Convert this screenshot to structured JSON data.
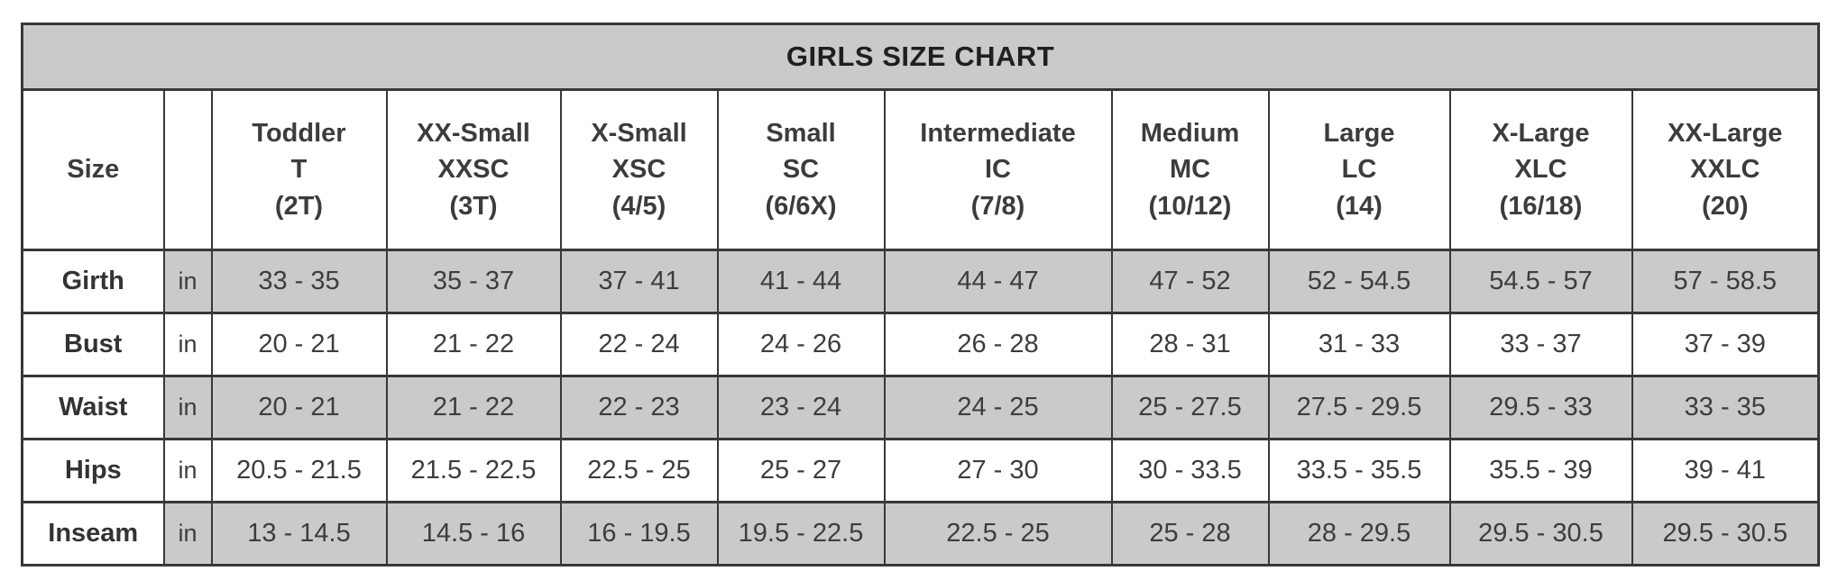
{
  "chart_data": {
    "type": "table",
    "title": "GIRLS SIZE CHART",
    "corner_label": "Size",
    "unit": "in",
    "columns": [
      {
        "name": "Toddler",
        "code": "T",
        "sizes": "(2T)"
      },
      {
        "name": "XX-Small",
        "code": "XXSC",
        "sizes": "(3T)"
      },
      {
        "name": "X-Small",
        "code": "XSC",
        "sizes": "(4/5)"
      },
      {
        "name": "Small",
        "code": "SC",
        "sizes": "(6/6X)"
      },
      {
        "name": "Intermediate",
        "code": "IC",
        "sizes": "(7/8)"
      },
      {
        "name": "Medium",
        "code": "MC",
        "sizes": "(10/12)"
      },
      {
        "name": "Large",
        "code": "LC",
        "sizes": "(14)"
      },
      {
        "name": "X-Large",
        "code": "XLC",
        "sizes": "(16/18)"
      },
      {
        "name": "XX-Large",
        "code": "XXLC",
        "sizes": "(20)"
      }
    ],
    "rows": [
      {
        "label": "Girth",
        "unit": "in",
        "values": [
          "33 - 35",
          "35 - 37",
          "37 - 41",
          "41 - 44",
          "44 - 47",
          "47 - 52",
          "52 - 54.5",
          "54.5 - 57",
          "57 - 58.5"
        ]
      },
      {
        "label": "Bust",
        "unit": "in",
        "values": [
          "20 - 21",
          "21 - 22",
          "22 - 24",
          "24 - 26",
          "26 - 28",
          "28 - 31",
          "31 - 33",
          "33 - 37",
          "37 - 39"
        ]
      },
      {
        "label": "Waist",
        "unit": "in",
        "values": [
          "20 - 21",
          "21 - 22",
          "22 - 23",
          "23 - 24",
          "24 - 25",
          "25 - 27.5",
          "27.5 - 29.5",
          "29.5 - 33",
          "33 - 35"
        ]
      },
      {
        "label": "Hips",
        "unit": "in",
        "values": [
          "20.5 - 21.5",
          "21.5 - 22.5",
          "22.5 - 25",
          "25 - 27",
          "27 - 30",
          "30 - 33.5",
          "33.5 - 35.5",
          "35.5 - 39",
          "39 - 41"
        ]
      },
      {
        "label": "Inseam",
        "unit": "in",
        "values": [
          "13 - 14.5",
          "14.5 - 16",
          "16 - 19.5",
          "19.5 - 22.5",
          "22.5 - 25",
          "25 - 28",
          "28 - 29.5",
          "29.5 - 30.5",
          "29.5 - 30.5"
        ]
      }
    ],
    "layout": {
      "striped_rows": "Girth, Waist, Inseam shaded gray; label column stays white"
    }
  },
  "colors": {
    "stripe_gray": "#cacaca",
    "cell_white": "#ffffff",
    "border": "#383838",
    "text": "#3c3c3c"
  }
}
